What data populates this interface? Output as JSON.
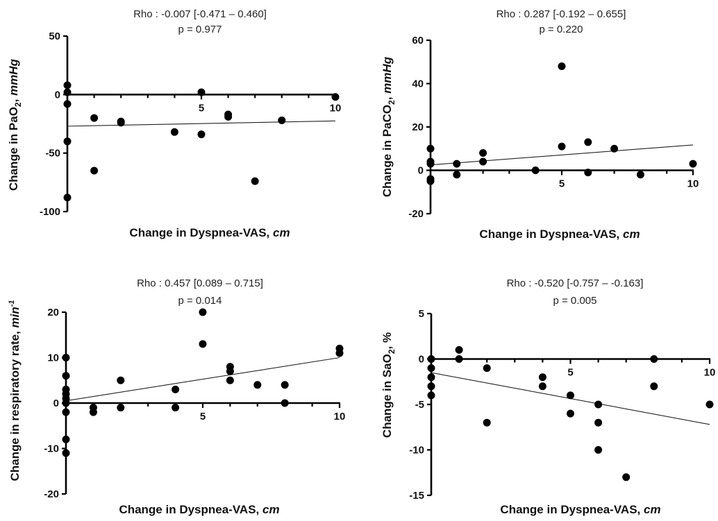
{
  "chart_data": [
    {
      "type": "scatter",
      "stat_line1": "Rho : -0.007 [-0.471 – 0.460]",
      "stat_line2": "p = 0.977",
      "xlabel_main": "Change in Dyspnea-VAS, ",
      "xlabel_unit": "cm",
      "ylabel_main": "Change in PaO",
      "ylabel_sub": "2",
      "ylabel_tail": ", ",
      "ylabel_unit": "mmHg",
      "xlim": [
        0,
        10
      ],
      "ylim": [
        -100,
        50
      ],
      "xticks": [
        5,
        10
      ],
      "yticks": [
        50,
        0,
        -50,
        -100
      ],
      "points": [
        {
          "x": 0,
          "y": 8
        },
        {
          "x": 0,
          "y": 2
        },
        {
          "x": 0,
          "y": -8
        },
        {
          "x": 0,
          "y": -40
        },
        {
          "x": 0,
          "y": -88
        },
        {
          "x": 1,
          "y": -20
        },
        {
          "x": 1,
          "y": -65
        },
        {
          "x": 2,
          "y": -23
        },
        {
          "x": 2,
          "y": -24
        },
        {
          "x": 4,
          "y": -32
        },
        {
          "x": 5,
          "y": 2
        },
        {
          "x": 5,
          "y": -34
        },
        {
          "x": 6,
          "y": -17
        },
        {
          "x": 6,
          "y": -19
        },
        {
          "x": 7,
          "y": -74
        },
        {
          "x": 8,
          "y": -22
        },
        {
          "x": 10,
          "y": -2
        }
      ],
      "fit": [
        [
          0,
          -27
        ],
        [
          10,
          -22.5
        ]
      ]
    },
    {
      "type": "scatter",
      "stat_line1": "Rho : 0.287 [-0.192 – 0.655]",
      "stat_line2": "p = 0.220",
      "xlabel_main": "Change in  Dyspnea-VAS, ",
      "xlabel_unit": "cm",
      "ylabel_main": "Change in PaCO",
      "ylabel_sub": "2",
      "ylabel_tail": ", ",
      "ylabel_unit": "mmHg",
      "xlim": [
        0,
        10
      ],
      "ylim": [
        -20,
        60
      ],
      "xticks": [
        5,
        10
      ],
      "yticks": [
        60,
        40,
        20,
        0,
        -20
      ],
      "points": [
        {
          "x": 0,
          "y": 10
        },
        {
          "x": 0,
          "y": 4
        },
        {
          "x": 0,
          "y": 3
        },
        {
          "x": 0,
          "y": -4
        },
        {
          "x": 0,
          "y": -5
        },
        {
          "x": 1,
          "y": 3
        },
        {
          "x": 1,
          "y": -2
        },
        {
          "x": 2,
          "y": 8
        },
        {
          "x": 2,
          "y": 4
        },
        {
          "x": 4,
          "y": 0
        },
        {
          "x": 5,
          "y": 48
        },
        {
          "x": 5,
          "y": 11
        },
        {
          "x": 6,
          "y": 13
        },
        {
          "x": 6,
          "y": -1
        },
        {
          "x": 7,
          "y": 10
        },
        {
          "x": 8,
          "y": -2
        },
        {
          "x": 10,
          "y": 3
        }
      ],
      "fit": [
        [
          0,
          2.5
        ],
        [
          10,
          11.7
        ]
      ]
    },
    {
      "type": "scatter",
      "stat_line1": "Rho : 0.457 [0.089 – 0.715]",
      "stat_line2": "p = 0.014",
      "xlabel_main": "Change in  Dyspnea-VAS, ",
      "xlabel_unit": "cm",
      "ylabel_main": "Change in respiratory rate, ",
      "ylabel_sub": "",
      "ylabel_tail": "",
      "ylabel_unit": "min",
      "ylabel_sup": "-1",
      "xlim": [
        0,
        10
      ],
      "ylim": [
        -20,
        20
      ],
      "xticks": [
        5,
        10
      ],
      "yticks": [
        20,
        10,
        0,
        -10,
        -20
      ],
      "points": [
        {
          "x": 0,
          "y": 10
        },
        {
          "x": 0,
          "y": 6
        },
        {
          "x": 0,
          "y": 3
        },
        {
          "x": 0,
          "y": 2
        },
        {
          "x": 0,
          "y": 1
        },
        {
          "x": 0,
          "y": 0
        },
        {
          "x": 0,
          "y": -2
        },
        {
          "x": 0,
          "y": -8
        },
        {
          "x": 0,
          "y": -11
        },
        {
          "x": 1,
          "y": -1
        },
        {
          "x": 1,
          "y": -2
        },
        {
          "x": 2,
          "y": 5
        },
        {
          "x": 2,
          "y": -1
        },
        {
          "x": 4,
          "y": 3
        },
        {
          "x": 4,
          "y": -1
        },
        {
          "x": 5,
          "y": 20
        },
        {
          "x": 5,
          "y": 13
        },
        {
          "x": 6,
          "y": 8
        },
        {
          "x": 6,
          "y": 7
        },
        {
          "x": 6,
          "y": 5
        },
        {
          "x": 7,
          "y": 4
        },
        {
          "x": 8,
          "y": 4
        },
        {
          "x": 8,
          "y": 0
        },
        {
          "x": 10,
          "y": 12
        },
        {
          "x": 10,
          "y": 11
        }
      ],
      "fit": [
        [
          0,
          0.5
        ],
        [
          10,
          10
        ]
      ]
    },
    {
      "type": "scatter",
      "stat_line1": "Rho : -0.520 [-0.757 – -0.163]",
      "stat_line2": "p = 0.005",
      "xlabel_main": "Change in  Dyspnea-VAS, ",
      "xlabel_unit": "cm",
      "ylabel_main": "Change in SaO",
      "ylabel_sub": "2",
      "ylabel_tail": ", %",
      "ylabel_unit": "",
      "xlim": [
        0,
        10
      ],
      "ylim": [
        -15,
        5
      ],
      "xticks": [
        5,
        10
      ],
      "yticks": [
        5,
        0,
        -5,
        -10,
        -15
      ],
      "points": [
        {
          "x": 0,
          "y": 0
        },
        {
          "x": 0,
          "y": -1
        },
        {
          "x": 0,
          "y": -2
        },
        {
          "x": 0,
          "y": -3
        },
        {
          "x": 0,
          "y": -4
        },
        {
          "x": 1,
          "y": 1
        },
        {
          "x": 1,
          "y": 0
        },
        {
          "x": 2,
          "y": -1
        },
        {
          "x": 2,
          "y": -7
        },
        {
          "x": 4,
          "y": -2
        },
        {
          "x": 4,
          "y": -3
        },
        {
          "x": 5,
          "y": -4
        },
        {
          "x": 5,
          "y": -6
        },
        {
          "x": 6,
          "y": -5
        },
        {
          "x": 6,
          "y": -7
        },
        {
          "x": 6,
          "y": -10
        },
        {
          "x": 7,
          "y": -13
        },
        {
          "x": 8,
          "y": 0
        },
        {
          "x": 8,
          "y": -3
        },
        {
          "x": 10,
          "y": -5
        }
      ],
      "fit": [
        [
          0,
          -1.5
        ],
        [
          10,
          -7.2
        ]
      ]
    }
  ]
}
